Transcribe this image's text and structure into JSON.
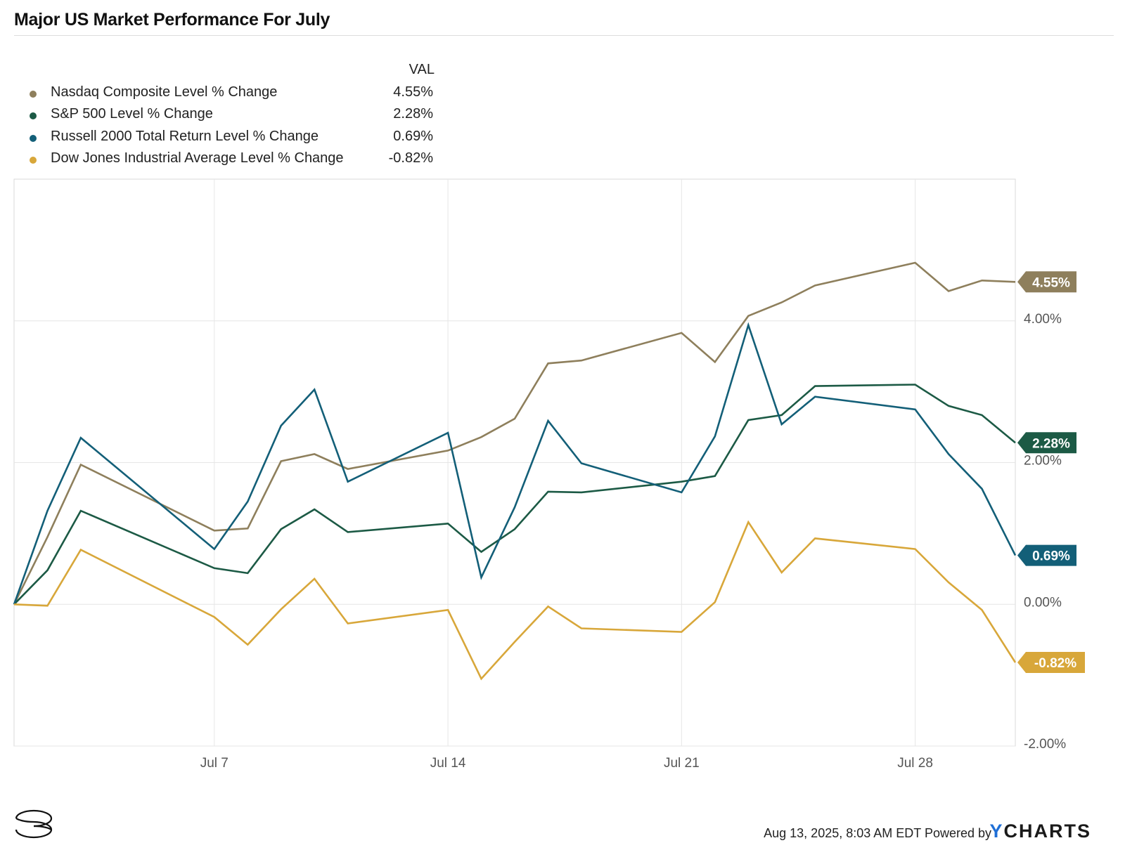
{
  "title": "Major US Market Performance For July",
  "legend_header": "VAL",
  "legend": [
    {
      "label": "Nasdaq Composite Level % Change",
      "value": "4.55%",
      "color": "#8e7f5c"
    },
    {
      "label": "S&P 500 Level % Change",
      "value": "2.28%",
      "color": "#1c5a45"
    },
    {
      "label": "Russell 2000 Total Return Level % Change",
      "value": "0.69%",
      "color": "#135f78"
    },
    {
      "label": "Dow Jones Industrial Average Level % Change",
      "value": "-0.82%",
      "color": "#d8a73a"
    }
  ],
  "footer": {
    "timestamp": "Aug 13, 2025, 8:03 AM EDT Powered by",
    "brand_prefix": "Y",
    "brand_rest": "CHARTS"
  },
  "chart_data": {
    "type": "line",
    "title": "Major US Market Performance For July",
    "x": [
      "2025-07-01",
      "2025-07-02",
      "2025-07-03",
      "2025-07-07",
      "2025-07-08",
      "2025-07-09",
      "2025-07-10",
      "2025-07-11",
      "2025-07-14",
      "2025-07-15",
      "2025-07-16",
      "2025-07-17",
      "2025-07-18",
      "2025-07-21",
      "2025-07-22",
      "2025-07-23",
      "2025-07-24",
      "2025-07-25",
      "2025-07-28",
      "2025-07-29",
      "2025-07-30",
      "2025-07-31"
    ],
    "x_range": [
      "2025-07-01",
      "2025-07-31"
    ],
    "x_ticks": [
      {
        "date": "2025-07-07",
        "label": "Jul 7"
      },
      {
        "date": "2025-07-14",
        "label": "Jul 14"
      },
      {
        "date": "2025-07-21",
        "label": "Jul 21"
      },
      {
        "date": "2025-07-28",
        "label": "Jul 28"
      }
    ],
    "y_ticks": [
      {
        "value": 4,
        "label": "4.00%"
      },
      {
        "value": 2,
        "label": "2.00%"
      },
      {
        "value": 0,
        "label": "0.00%"
      },
      {
        "value": -2,
        "label": "-2.00%"
      }
    ],
    "ylim": [
      -2,
      6
    ],
    "grid": true,
    "legend_position": "top-left",
    "series": [
      {
        "name": "Nasdaq Composite Level % Change",
        "color": "#8e7f5c",
        "end_label": "4.55%",
        "values": [
          0,
          0.95,
          1.97,
          1.04,
          1.07,
          2.02,
          2.12,
          1.91,
          2.17,
          2.36,
          2.62,
          3.4,
          3.44,
          3.83,
          3.42,
          4.07,
          4.26,
          4.5,
          4.82,
          4.42,
          4.57,
          4.55
        ]
      },
      {
        "name": "S&P 500 Level % Change",
        "color": "#1c5a45",
        "end_label": "2.28%",
        "values": [
          0,
          0.48,
          1.32,
          0.51,
          0.44,
          1.06,
          1.34,
          1.02,
          1.14,
          0.74,
          1.06,
          1.59,
          1.58,
          1.73,
          1.81,
          2.6,
          2.67,
          3.08,
          3.1,
          2.8,
          2.67,
          2.28
        ]
      },
      {
        "name": "Russell 2000 Total Return Level % Change",
        "color": "#135f78",
        "end_label": "0.69%",
        "values": [
          0,
          1.32,
          2.35,
          0.78,
          1.45,
          2.52,
          3.03,
          1.73,
          2.42,
          0.38,
          1.37,
          2.59,
          1.99,
          1.58,
          2.37,
          3.94,
          2.54,
          2.93,
          2.75,
          2.12,
          1.63,
          0.69
        ]
      },
      {
        "name": "Dow Jones Industrial Average Level % Change",
        "color": "#d8a73a",
        "end_label": "-0.82%",
        "values": [
          0,
          -0.02,
          0.77,
          -0.18,
          -0.57,
          -0.07,
          0.36,
          -0.27,
          -0.08,
          -1.05,
          -0.53,
          -0.03,
          -0.34,
          -0.39,
          0.03,
          1.16,
          0.45,
          0.93,
          0.78,
          0.31,
          -0.08,
          -0.82
        ]
      }
    ]
  }
}
